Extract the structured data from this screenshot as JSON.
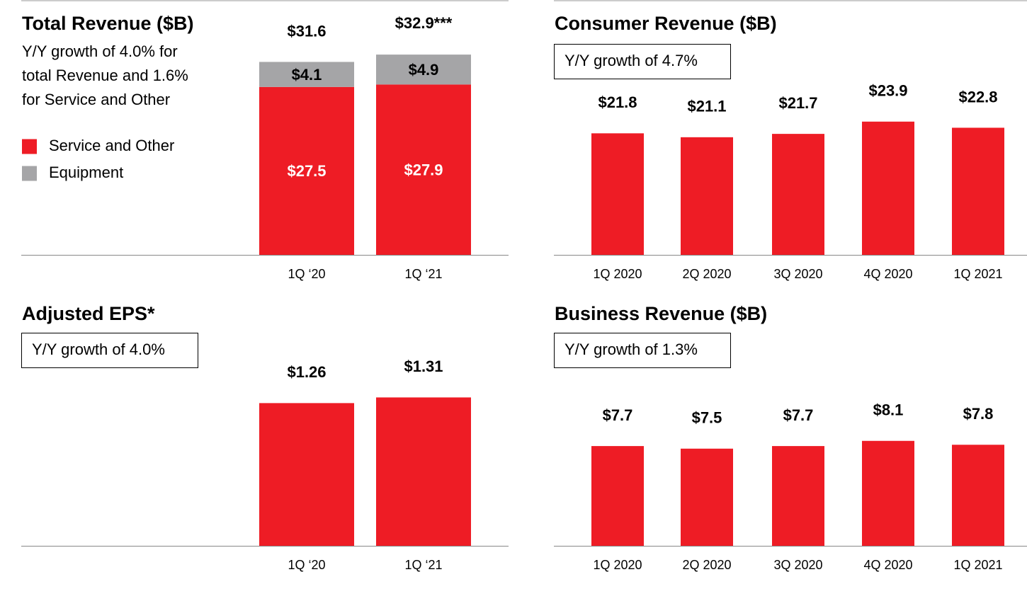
{
  "chart_data": [
    {
      "type": "stacked_bar",
      "title": "Total Revenue ($B)",
      "subtitle": [
        "Y/Y growth of 4.0% for",
        "total Revenue and 1.6%",
        "for Service and Other"
      ],
      "categories": [
        "1Q ‘20",
        "1Q ‘21"
      ],
      "series": [
        {
          "name": "Service and Other",
          "color": "#ee1c25",
          "values": [
            27.5,
            27.9
          ],
          "value_labels": [
            "$27.5",
            "$27.9"
          ]
        },
        {
          "name": "Equipment",
          "color": "#a5a5a7",
          "values": [
            4.1,
            4.9
          ],
          "value_labels": [
            "$4.1",
            "$4.9"
          ]
        }
      ],
      "totals": [
        31.6,
        32.9
      ],
      "total_labels": [
        "$31.6",
        "$32.9***"
      ],
      "ylim": [
        0,
        40
      ]
    },
    {
      "type": "bar",
      "title": "Consumer Revenue ($B)",
      "annotation": "Y/Y growth of 4.7%",
      "categories": [
        "1Q 2020",
        "2Q 2020",
        "3Q 2020",
        "4Q 2020",
        "1Q 2021"
      ],
      "values": [
        21.8,
        21.1,
        21.7,
        23.9,
        22.8
      ],
      "value_labels": [
        "$21.8",
        "$21.1",
        "$21.7",
        "$23.9",
        "$22.8"
      ],
      "color": "#ee1c25",
      "ylim": [
        0,
        40
      ]
    },
    {
      "type": "bar",
      "title": "Adjusted EPS*",
      "annotation": "Y/Y growth of 4.0%",
      "categories": [
        "1Q ‘20",
        "1Q ‘21"
      ],
      "values": [
        1.26,
        1.31
      ],
      "value_labels": [
        "$1.26",
        "$1.31"
      ],
      "color": "#ee1c25",
      "ylim": [
        0,
        2.5
      ]
    },
    {
      "type": "bar",
      "title": "Business Revenue ($B)",
      "annotation": "Y/Y growth of 1.3%",
      "categories": [
        "1Q 2020",
        "2Q 2020",
        "3Q 2020",
        "4Q 2020",
        "1Q 2021"
      ],
      "values": [
        7.7,
        7.5,
        7.7,
        8.1,
        7.8
      ],
      "value_labels": [
        "$7.7",
        "$7.5",
        "$7.7",
        "$8.1",
        "$7.8"
      ],
      "color": "#ee1c25",
      "ylim": [
        0,
        20
      ]
    }
  ]
}
